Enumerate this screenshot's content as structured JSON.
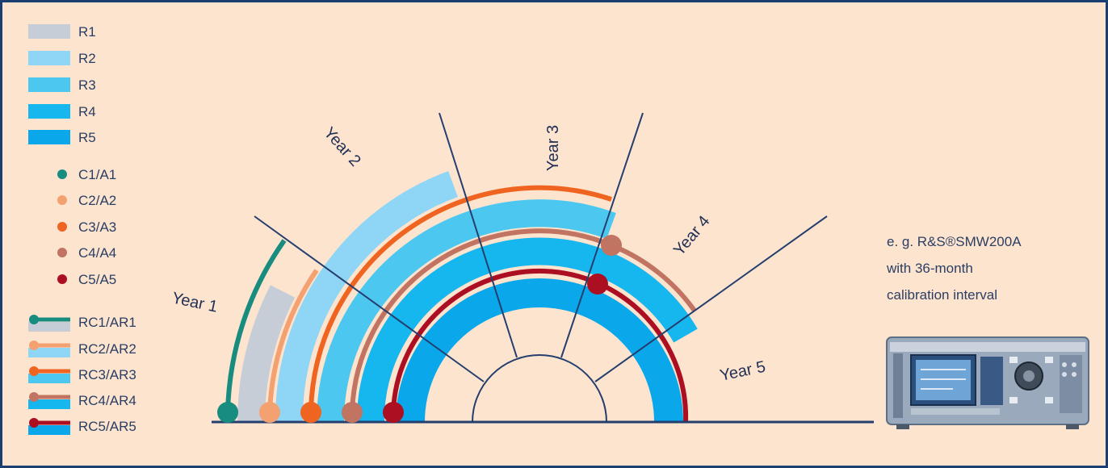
{
  "legend": {
    "rings": [
      {
        "label": "R1",
        "color": "#c6cdd6"
      },
      {
        "label": "R2",
        "color": "#8fd6f6"
      },
      {
        "label": "R3",
        "color": "#4cc8f0"
      },
      {
        "label": "R4",
        "color": "#16b6ee"
      },
      {
        "label": "R5",
        "color": "#0aa8ea"
      }
    ],
    "dots": [
      {
        "label": "C1/A1",
        "color": "#178c7f"
      },
      {
        "label": "C2/A2",
        "color": "#f4a171"
      },
      {
        "label": "C3/A3",
        "color": "#ef6420"
      },
      {
        "label": "C4/A4",
        "color": "#c17461"
      },
      {
        "label": "C5/A5",
        "color": "#ac0e22"
      }
    ],
    "combos": [
      {
        "label": "RC1/AR1"
      },
      {
        "label": "RC2/AR2"
      },
      {
        "label": "RC3/AR3"
      },
      {
        "label": "RC4/AR4"
      },
      {
        "label": "RC5/AR5"
      }
    ]
  },
  "years": [
    "Year 1",
    "Year 2",
    "Year 3",
    "Year 4",
    "Year 5"
  ],
  "note": {
    "line1": "e. g. R&S®SMW200A",
    "line2": "with 36-month",
    "line3": "calibration interval"
  },
  "colors": {
    "background": "#fde4cf",
    "frame": "#1c3f73",
    "axis": "#243e6e"
  }
}
